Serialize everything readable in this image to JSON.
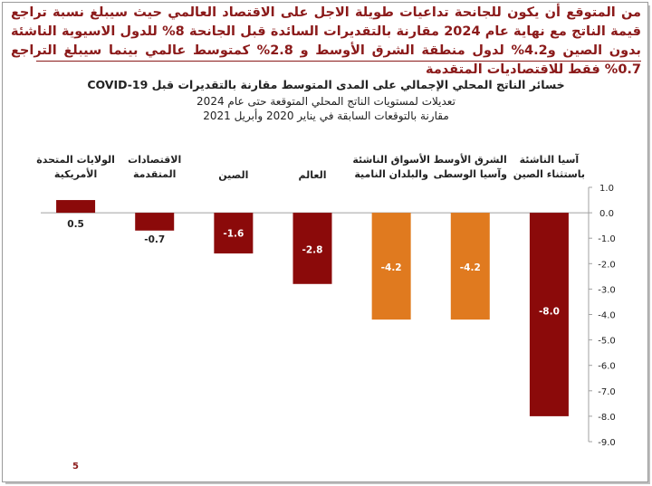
{
  "headline": "من المتوقع أن يكون للجانحة تداعيات طويلة الاجل على الاقتصاد العالمي حيث سيبلغ نسبة تراجع قيمة الناتج مع نهاية عام 2024 مقارنة بالتقديرات السائدة قبل الجانحة 8% للدول الاسيوية الناشئة بدون الصين و4.2% لدول منطقة الشرق الأوسط و 2.8% كمتوسط عالمي بينما سيبلغ التراجع 0.7% فقط للاقتصاديات المتقدمة",
  "page_number": "5",
  "chart_data": {
    "type": "bar",
    "title": "خسائر الناتج المحلي الإجمالي على المدى المتوسط مقارنة بالتقديرات قبل COVID-19",
    "subtitle1": "تعديلات لمستويات الناتج المحلي المتوقعة حتى عام 2024",
    "subtitle2": "مقارنة بالتوقعات السابقة في يناير 2020 وأبريل 2021",
    "categories": [
      [
        "الولايات المتحدة",
        "الأمريكية"
      ],
      [
        "الاقتصادات",
        "المتقدمة"
      ],
      [
        "الصين"
      ],
      [
        "العالم"
      ],
      [
        "الأسواق الناشئة",
        "والبلدان النامية"
      ],
      [
        "الشرق الأوسط",
        "وآسيا الوسطى"
      ],
      [
        "آسيا الناشئة",
        "باستثناء الصين"
      ]
    ],
    "values": [
      0.5,
      -0.7,
      -1.6,
      -2.8,
      -4.2,
      -4.2,
      -8.0
    ],
    "value_labels": [
      "0.5",
      "-0.7",
      "-1.6",
      "-2.8",
      "-4.2",
      "-4.2",
      "-8.0"
    ],
    "colors": [
      "#8b0a0a",
      "#8b0a0a",
      "#8b0a0a",
      "#8b0a0a",
      "#e07a1f",
      "#e07a1f",
      "#8b0a0a"
    ],
    "ylim": [
      -9.0,
      1.0
    ],
    "yticks": [
      "1.0",
      "0.0",
      "-1.0",
      "-2.0",
      "-3.0",
      "-4.0",
      "-5.0",
      "-6.0",
      "-7.0",
      "-8.0",
      "-9.0"
    ],
    "ytick_values": [
      1,
      0,
      -1,
      -2,
      -3,
      -4,
      -5,
      -6,
      -7,
      -8,
      -9
    ],
    "axis_side": "right",
    "grid": false
  }
}
